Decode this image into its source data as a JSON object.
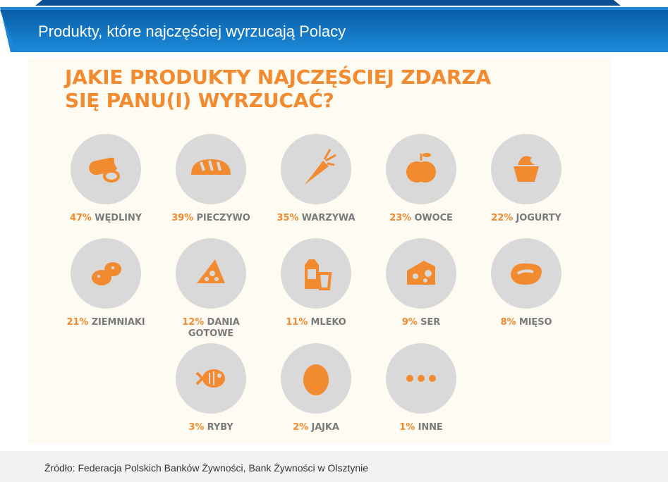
{
  "banner": {
    "title": "Produkty, które najczęściej wyrzucają Polacy"
  },
  "headline": {
    "line1": "JAKIE PRODUKTY NAJCZĘŚCIEJ ZDARZA",
    "line2": "SIĘ PANU(I) WYRZUCAĆ?"
  },
  "colors": {
    "accent": "#f28a2f",
    "circle": "#d9d9d9",
    "label": "#7a7a7a",
    "banner": "#1577c5"
  },
  "chart_data": {
    "type": "table",
    "title": "JAKIE PRODUKTY NAJCZĘŚCIEJ ZDARZA SIĘ PANU(I) WYRZUCAĆ?",
    "items": [
      {
        "pct": "47%",
        "value": 47,
        "label": "WĘDLINY",
        "icon": "sausage-icon"
      },
      {
        "pct": "39%",
        "value": 39,
        "label": "PIECZYWO",
        "icon": "bread-icon"
      },
      {
        "pct": "35%",
        "value": 35,
        "label": "WARZYWA",
        "icon": "carrot-icon"
      },
      {
        "pct": "23%",
        "value": 23,
        "label": "OWOCE",
        "icon": "apple-icon"
      },
      {
        "pct": "22%",
        "value": 22,
        "label": "JOGURTY",
        "icon": "yogurt-icon"
      },
      {
        "pct": "21%",
        "value": 21,
        "label": "ZIEMNIAKI",
        "icon": "potato-icon"
      },
      {
        "pct": "12%",
        "value": 12,
        "label": "DANIA GOTOWE",
        "icon": "pizza-icon"
      },
      {
        "pct": "11%",
        "value": 11,
        "label": "MLEKO",
        "icon": "milk-icon"
      },
      {
        "pct": "9%",
        "value": 9,
        "label": "SER",
        "icon": "cheese-icon"
      },
      {
        "pct": "8%",
        "value": 8,
        "label": "MIĘSO",
        "icon": "steak-icon"
      },
      {
        "pct": "3%",
        "value": 3,
        "label": "RYBY",
        "icon": "fish-icon"
      },
      {
        "pct": "2%",
        "value": 2,
        "label": "JAJKA",
        "icon": "egg-icon"
      },
      {
        "pct": "1%",
        "value": 1,
        "label": "INNE",
        "icon": "dots-icon"
      }
    ]
  },
  "footer": {
    "source": "Źródło: Federacja Polskich Banków Żywności, Bank Żywności w Olsztynie"
  }
}
